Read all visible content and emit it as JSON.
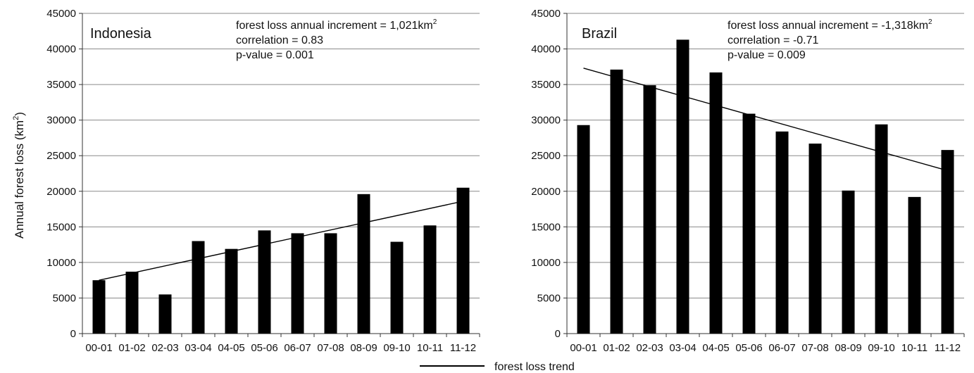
{
  "chart_data": [
    {
      "type": "bar",
      "title": "Indonesia",
      "categories": [
        "00-01",
        "01-02",
        "02-03",
        "03-04",
        "04-05",
        "05-06",
        "06-07",
        "07-08",
        "08-09",
        "09-10",
        "10-11",
        "11-12"
      ],
      "values": [
        7500,
        8700,
        5500,
        13000,
        11900,
        14500,
        14100,
        14100,
        19600,
        12900,
        15200,
        20500
      ],
      "trend": {
        "start": 7500,
        "end": 18600
      },
      "ylim": [
        0,
        45000
      ],
      "yticks": [
        0,
        5000,
        10000,
        15000,
        20000,
        25000,
        30000,
        35000,
        40000,
        45000
      ],
      "annotations": [
        {
          "text": "forest loss annual increment = 1,021km",
          "sup": "2"
        },
        {
          "text": "correlation = 0.83",
          "sup": ""
        },
        {
          "text": "p-value = 0.001",
          "sup": ""
        }
      ]
    },
    {
      "type": "bar",
      "title": "Brazil",
      "categories": [
        "00-01",
        "01-02",
        "02-03",
        "03-04",
        "04-05",
        "05-06",
        "06-07",
        "07-08",
        "08-09",
        "09-10",
        "10-11",
        "11-12"
      ],
      "values": [
        29300,
        37100,
        34900,
        41300,
        36700,
        30900,
        28400,
        26700,
        20100,
        29400,
        19200,
        25800
      ],
      "trend": {
        "start": 37300,
        "end": 22900
      },
      "ylim": [
        0,
        45000
      ],
      "yticks": [
        0,
        5000,
        10000,
        15000,
        20000,
        25000,
        30000,
        35000,
        40000,
        45000
      ],
      "annotations": [
        {
          "text": "forest loss annual increment = -1,318km",
          "sup": "2"
        },
        {
          "text": "correlation = -0.71",
          "sup": ""
        },
        {
          "text": "p-value = 0.009",
          "sup": ""
        }
      ]
    }
  ],
  "ylabel": {
    "text": "Annual forest loss (km",
    "sup": "2",
    "suffix": ")"
  },
  "legend": {
    "label": "forest loss trend"
  }
}
